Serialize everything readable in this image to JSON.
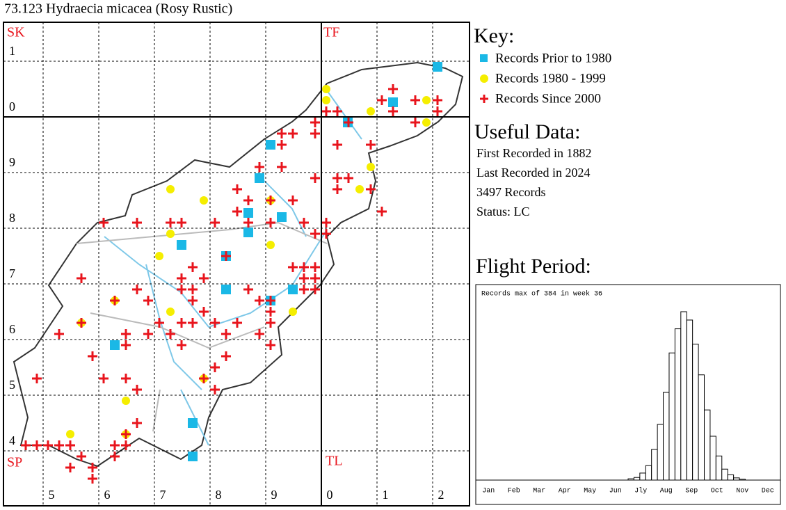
{
  "title": "73.123 Hydraecia micacea (Rosy Rustic)",
  "map": {
    "squares": [
      "SK",
      "TF",
      "SP",
      "TL"
    ],
    "row_labels": [
      "1",
      "0",
      "9",
      "8",
      "7",
      "6",
      "5",
      "4"
    ],
    "col_labels": [
      "5",
      "6",
      "7",
      "8",
      "9",
      "0",
      "1",
      "2"
    ]
  },
  "key": {
    "title": "Key:",
    "items": [
      "Records Prior to 1980",
      "Records 1980 - 1999",
      "Records Since 2000"
    ]
  },
  "useful": {
    "title": "Useful Data:",
    "lines": [
      "First Recorded in 1882",
      "Last Recorded in 2024",
      "3497 Records",
      "Status: LC"
    ]
  },
  "flight": {
    "title": "Flight Period:",
    "note": "Records max of 384 in week 36",
    "months": [
      "Jan",
      "Feb",
      "Mar",
      "Apr",
      "May",
      "Jun",
      "Jly",
      "Aug",
      "Sep",
      "Oct",
      "Nov",
      "Dec"
    ],
    "weeks": [
      27,
      28,
      29,
      30,
      31,
      32,
      33,
      34,
      35,
      36,
      37,
      38,
      39,
      40,
      41,
      42,
      43,
      44,
      45,
      46
    ],
    "counts": [
      3,
      6,
      16,
      33,
      70,
      127,
      200,
      290,
      345,
      384,
      365,
      310,
      240,
      160,
      100,
      55,
      25,
      12,
      5,
      2
    ]
  }
}
